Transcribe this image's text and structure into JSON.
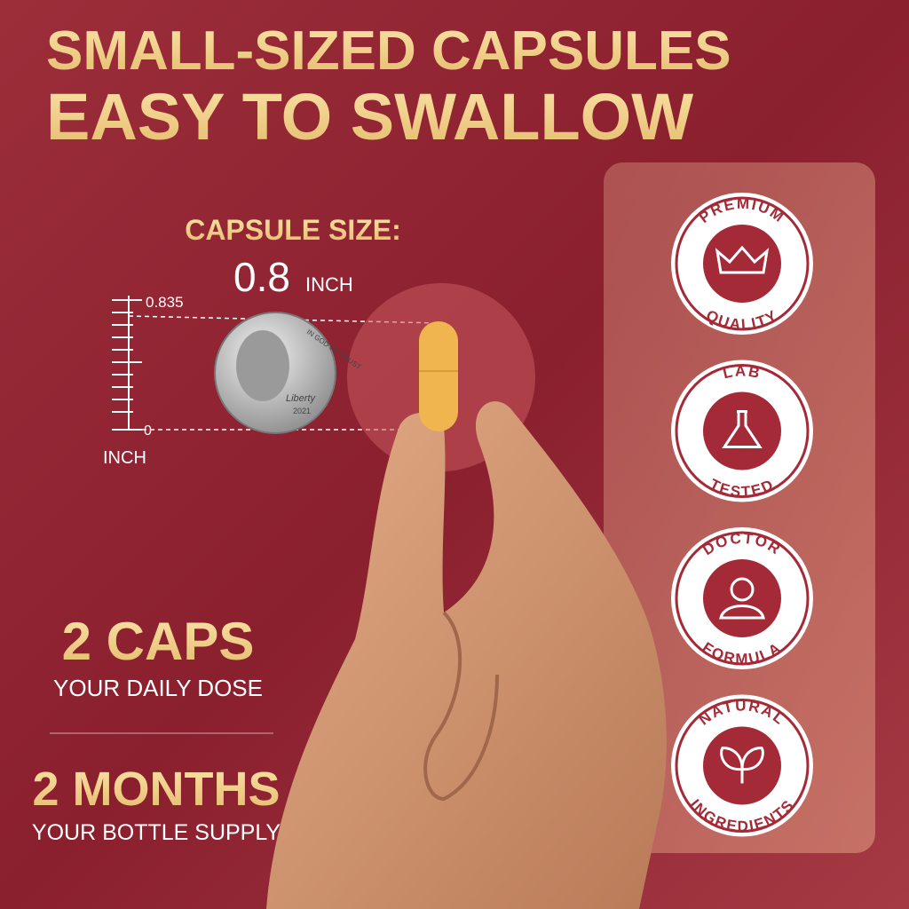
{
  "header": {
    "line1": "SMALL-SIZED CAPSULES",
    "line2": "EASY TO SWALLOW"
  },
  "capsule_size": {
    "label": "CAPSULE SIZE:",
    "value": "0.8",
    "unit": "INCH"
  },
  "ruler": {
    "top": "0.835",
    "bottom": "0",
    "unit": "INCH"
  },
  "coin": {
    "motto": "IN GOD WE TRUST",
    "word": "Liberty",
    "year": "2021"
  },
  "dose": {
    "big": "2 CAPS",
    "small": "YOUR DAILY DOSE"
  },
  "supply": {
    "big": "2 MONTHS",
    "small": "YOUR BOTTLE SUPPLY"
  },
  "badges": [
    {
      "top": "PREMIUM",
      "bottom": "QUALITY"
    },
    {
      "top": "LAB",
      "bottom": "TESTED"
    },
    {
      "top": "DOCTOR",
      "bottom": "FORMULA"
    },
    {
      "top": "NATURAL",
      "bottom": "INGREDIENTS"
    }
  ]
}
